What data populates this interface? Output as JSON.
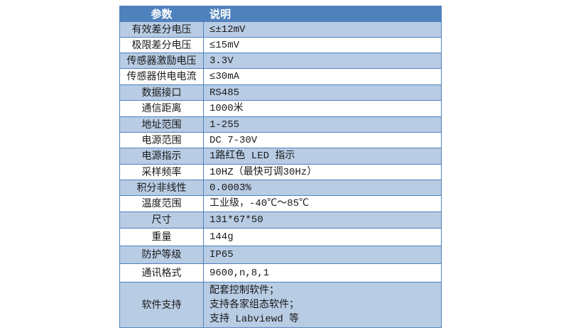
{
  "header": {
    "param": "参数",
    "desc": "说明"
  },
  "colors": {
    "header_bg": "#4f81bd",
    "band_bg": "#b8cce4",
    "alt_bg": "#ffffff"
  },
  "rows": [
    {
      "param": "有效差分电压",
      "desc": "≤±12mV"
    },
    {
      "param": "极限差分电压",
      "desc": "≤15mV"
    },
    {
      "param": "传感器激励电压",
      "desc": "3.3V"
    },
    {
      "param": "传感器供电电流",
      "desc": "≤30mA"
    },
    {
      "param": "数据接口",
      "desc": "RS485"
    },
    {
      "param": "通信距离",
      "desc": "1000米"
    },
    {
      "param": "地址范围",
      "desc": "1-255"
    },
    {
      "param": "电源范围",
      "desc": "DC 7-30V"
    },
    {
      "param": "电源指示",
      "desc": "1路红色 LED 指示"
    },
    {
      "param": "采样频率",
      "desc": "10HZ（最快可调30Hz）"
    },
    {
      "param": "积分非线性",
      "desc": "0.0003%"
    },
    {
      "param": "温度范围",
      "desc": "工业级，-40℃～85℃"
    },
    {
      "param": "尺寸",
      "desc": "131*67*50"
    },
    {
      "param": "重量",
      "desc": "144g"
    },
    {
      "param": "防护等级",
      "desc": "IP65"
    },
    {
      "param": "通讯格式",
      "desc": "9600,n,8,1"
    }
  ],
  "last_row": {
    "param": "软件支持",
    "lines": [
      "配套控制软件；",
      "支持各家组态软件；",
      "支持 Labviewd 等"
    ]
  }
}
